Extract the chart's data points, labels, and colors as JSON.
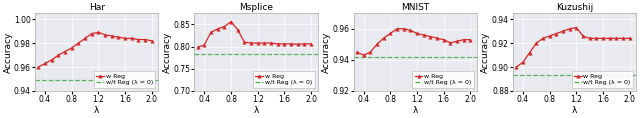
{
  "subplots": [
    {
      "title": "Har",
      "xlabel": "λ",
      "ylabel": "Accuracy",
      "ylim": [
        0.94,
        1.005
      ],
      "yticks": [
        0.94,
        0.96,
        0.98,
        1.0
      ],
      "xlim": [
        0.25,
        2.1
      ],
      "xticks": [
        0.4,
        0.8,
        1.2,
        1.6,
        2.0
      ],
      "baseline": 0.949,
      "x": [
        0.3,
        0.4,
        0.5,
        0.6,
        0.7,
        0.8,
        0.9,
        1.0,
        1.1,
        1.2,
        1.3,
        1.4,
        1.5,
        1.6,
        1.7,
        1.8,
        1.9,
        2.0
      ],
      "y": [
        0.96,
        0.963,
        0.966,
        0.97,
        0.973,
        0.976,
        0.98,
        0.984,
        0.988,
        0.989,
        0.987,
        0.986,
        0.985,
        0.984,
        0.984,
        0.983,
        0.983,
        0.982
      ],
      "legend_loc": "lower right"
    },
    {
      "title": "Msplice",
      "xlabel": "λ",
      "ylabel": "Accuracy",
      "ylim": [
        0.7,
        0.875
      ],
      "yticks": [
        0.7,
        0.75,
        0.8,
        0.85
      ],
      "xlim": [
        0.25,
        2.1
      ],
      "xticks": [
        0.4,
        0.8,
        1.2,
        1.6,
        2.0
      ],
      "baseline": 0.783,
      "x": [
        0.3,
        0.4,
        0.5,
        0.6,
        0.7,
        0.8,
        0.9,
        1.0,
        1.1,
        1.2,
        1.3,
        1.4,
        1.5,
        1.6,
        1.7,
        1.8,
        1.9,
        2.0
      ],
      "y": [
        0.798,
        0.804,
        0.832,
        0.84,
        0.845,
        0.856,
        0.838,
        0.81,
        0.808,
        0.808,
        0.808,
        0.808,
        0.806,
        0.806,
        0.806,
        0.805,
        0.806,
        0.806
      ],
      "legend_loc": "lower right"
    },
    {
      "title": "MNIST",
      "xlabel": "λ",
      "ylabel": "Accuracy",
      "ylim": [
        0.92,
        0.97
      ],
      "yticks": [
        0.92,
        0.94,
        0.96
      ],
      "xlim": [
        0.25,
        2.1
      ],
      "xticks": [
        0.4,
        0.8,
        1.2,
        1.6,
        2.0
      ],
      "baseline": 0.942,
      "x": [
        0.3,
        0.4,
        0.5,
        0.6,
        0.7,
        0.8,
        0.9,
        1.0,
        1.1,
        1.2,
        1.3,
        1.4,
        1.5,
        1.6,
        1.7,
        1.8,
        1.9,
        2.0
      ],
      "y": [
        0.945,
        0.943,
        0.945,
        0.95,
        0.954,
        0.957,
        0.96,
        0.96,
        0.959,
        0.957,
        0.956,
        0.955,
        0.954,
        0.953,
        0.951,
        0.952,
        0.953,
        0.953
      ],
      "legend_loc": "lower right"
    },
    {
      "title": "Kuzushij",
      "xlabel": "λ",
      "ylabel": "Accuracy",
      "ylim": [
        0.88,
        0.945
      ],
      "yticks": [
        0.88,
        0.9,
        0.92,
        0.94
      ],
      "xlim": [
        0.25,
        2.1
      ],
      "xticks": [
        0.4,
        0.8,
        1.2,
        1.6,
        2.0
      ],
      "baseline": 0.893,
      "x": [
        0.3,
        0.4,
        0.5,
        0.6,
        0.7,
        0.8,
        0.9,
        1.0,
        1.1,
        1.2,
        1.3,
        1.4,
        1.5,
        1.6,
        1.7,
        1.8,
        1.9,
        2.0
      ],
      "y": [
        0.9,
        0.904,
        0.912,
        0.92,
        0.924,
        0.926,
        0.928,
        0.93,
        0.932,
        0.933,
        0.926,
        0.924,
        0.924,
        0.924,
        0.924,
        0.924,
        0.924,
        0.924
      ],
      "legend_loc": "lower right"
    }
  ],
  "line_color": "#d62728",
  "baseline_color": "#4daf4a",
  "marker": "^",
  "markersize": 2.5,
  "linewidth": 0.9,
  "legend_label_reg": "w Reg",
  "legend_label_noreg": "w/t Reg (λ = 0)",
  "bg_color": "#e8eaf0"
}
